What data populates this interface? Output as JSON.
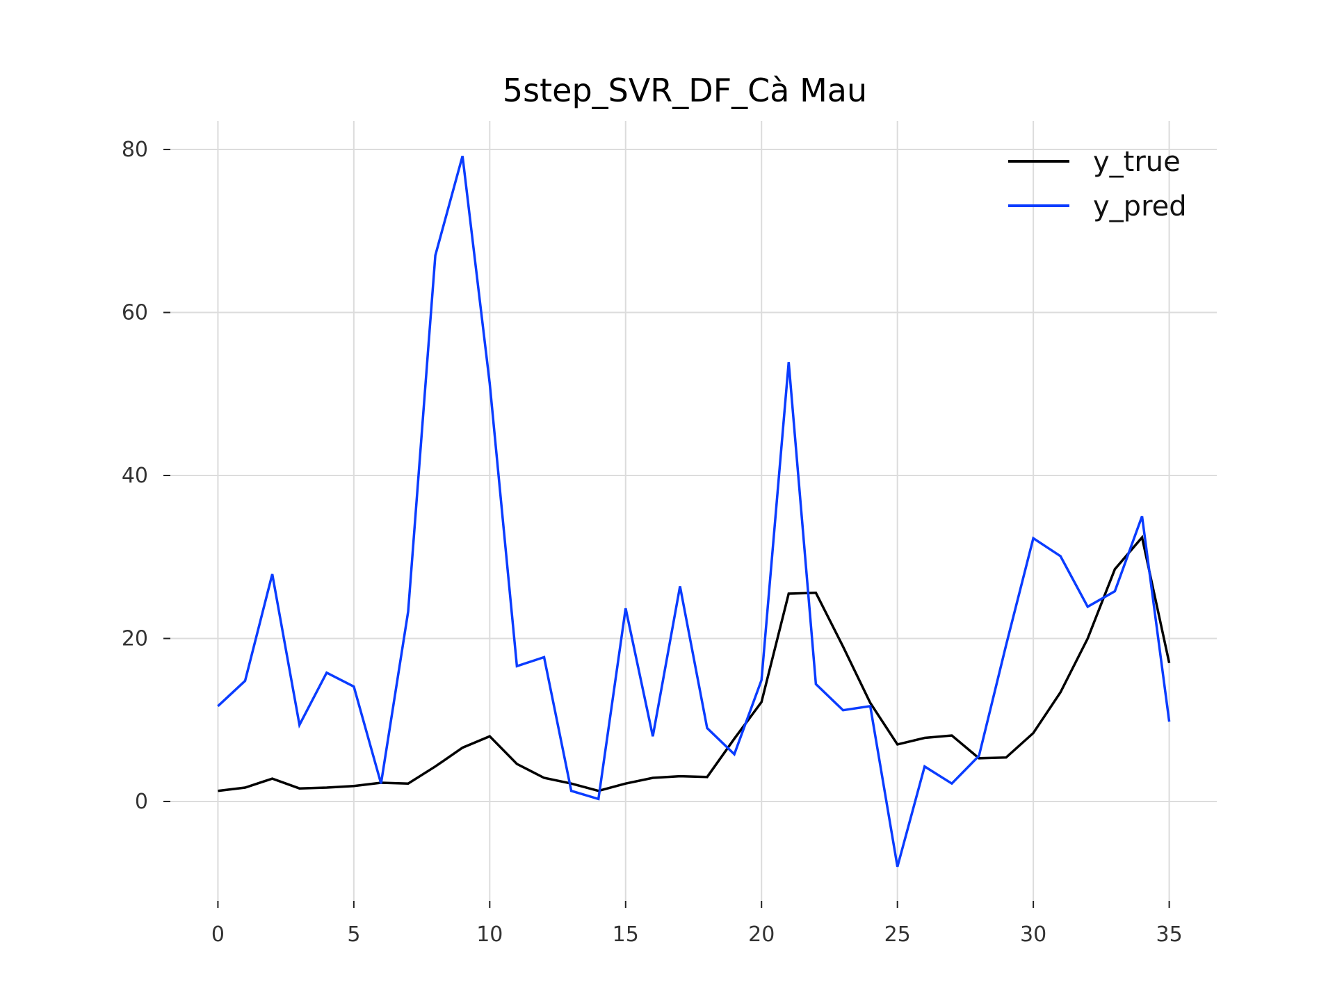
{
  "chart_data": {
    "type": "line",
    "title": "5step_SVR_DF_Cà Mau",
    "xlabel": "",
    "ylabel": "",
    "xlim": [
      -1.75,
      36.75
    ],
    "ylim": [
      -12.2,
      83.5
    ],
    "xticks": [
      0,
      5,
      10,
      15,
      20,
      25,
      30,
      35
    ],
    "yticks": [
      0,
      20,
      40,
      60,
      80
    ],
    "grid": true,
    "legend_position": "top-right",
    "x": [
      0,
      1,
      2,
      3,
      4,
      5,
      6,
      7,
      8,
      9,
      10,
      11,
      12,
      13,
      14,
      15,
      16,
      17,
      18,
      19,
      20,
      21,
      22,
      23,
      24,
      25,
      26,
      27,
      28,
      29,
      30,
      31,
      32,
      33,
      34,
      35
    ],
    "series": [
      {
        "name": "y_true",
        "color": "#000000",
        "values": [
          1.3,
          1.7,
          2.8,
          1.6,
          1.7,
          1.9,
          2.3,
          2.2,
          4.3,
          6.6,
          8.0,
          4.6,
          2.9,
          2.2,
          1.3,
          2.2,
          2.9,
          3.1,
          3.0,
          7.7,
          12.2,
          25.5,
          25.6,
          19.0,
          12.1,
          7.0,
          7.8,
          8.1,
          5.3,
          5.4,
          8.4,
          13.4,
          20.0,
          28.5,
          32.4,
          17.0
        ]
      },
      {
        "name": "y_pred",
        "color": "#0a3cff",
        "values": [
          11.7,
          14.8,
          27.9,
          9.4,
          15.8,
          14.1,
          2.2,
          23.3,
          67.0,
          79.2,
          51.3,
          16.6,
          17.7,
          1.3,
          0.3,
          23.7,
          8.0,
          26.4,
          9.0,
          5.8,
          14.9,
          53.9,
          14.4,
          11.2,
          11.7,
          -8.0,
          4.3,
          2.2,
          5.6,
          19.2,
          32.3,
          30.1,
          23.9,
          25.8,
          35.0,
          9.8
        ]
      }
    ]
  }
}
